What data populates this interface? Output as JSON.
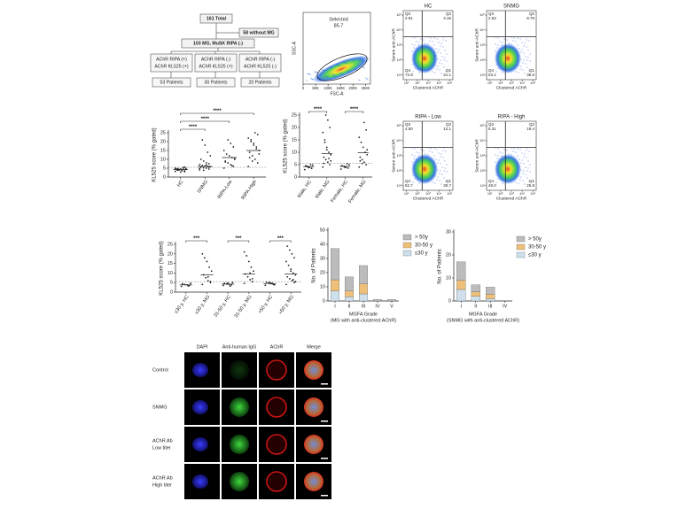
{
  "flowchart": {
    "nodes": [
      {
        "lines": [
          "161 Total"
        ]
      },
      {
        "lines": [
          "58 without MG"
        ]
      },
      {
        "lines": [
          "103 MG, MuSK RIPA (-)"
        ]
      },
      {
        "lines": [
          "AChR RIPA (+)",
          "AChR KL525 (+)"
        ]
      },
      {
        "lines": [
          "AChR RIPA (-)",
          "AChR KL525 (+)"
        ]
      },
      {
        "lines": [
          "AChR RIPA (-)",
          "AChR KL525 (-)"
        ]
      },
      {
        "lines": [
          "53 Patients"
        ]
      },
      {
        "lines": [
          "30 Patients"
        ]
      },
      {
        "lines": [
          "20 Patients"
        ]
      }
    ]
  },
  "gating": {
    "gate_name": "Selected",
    "gate_value": 85.7,
    "xlabel": "FSC-A",
    "ylabel": "SSC-A",
    "xlim": [
      0,
      270000
    ],
    "xticks": [
      0,
      {
        "value": 50000,
        "label": "50K"
      },
      {
        "value": 100000,
        "label": "100K"
      },
      {
        "value": 150000,
        "label": "150K"
      },
      {
        "value": 200000,
        "label": "200K"
      },
      {
        "value": 250000,
        "label": "250K"
      }
    ]
  },
  "facs": {
    "xlabel": "Clustered AChR",
    "ylabel": "Serum anti-AChR",
    "lim": [
      5,
      200000
    ],
    "log_scale": true,
    "ticks": [
      {
        "value": 10,
        "label": "10¹"
      },
      {
        "value": 100,
        "label": "10²"
      },
      {
        "value": 1000,
        "label": "10³"
      },
      {
        "value": 10000,
        "label": "10⁴"
      },
      {
        "value": 100000,
        "label": "10⁵"
      }
    ],
    "plots": [
      {
        "title": "HC",
        "quadrants": [
          {
            "name": "Q3",
            "value": 2.91
          },
          {
            "name": "Q2",
            "value": 3.16
          },
          {
            "name": "Q4",
            "value": 72.8
          },
          {
            "name": "Q1",
            "value": 21.1
          }
        ]
      },
      {
        "title": "SNMG",
        "quadrants": [
          {
            "name": "Q3",
            "value": 2.53
          },
          {
            "name": "Q2",
            "value": 8.76
          },
          {
            "name": "Q4",
            "value": 53.1
          },
          {
            "name": "Q1",
            "value": 35.6
          }
        ]
      },
      {
        "title": "RIPA - Low",
        "quadrants": [
          {
            "name": "Q3",
            "value": 4.5,
            "label": "4.50"
          },
          {
            "name": "Q2",
            "value": 12.1
          },
          {
            "name": "Q4",
            "value": 52.7
          },
          {
            "name": "Q1",
            "value": 30.7
          }
        ]
      },
      {
        "title": "RIPA - High",
        "quadrants": [
          {
            "name": "Q3",
            "value": 5.31
          },
          {
            "name": "Q2",
            "value": 19.4
          },
          {
            "name": "Q4",
            "value": 49.0,
            "label": "49.0"
          },
          {
            "name": "Q1",
            "value": 25.9
          }
        ]
      }
    ]
  },
  "chart_data": [
    {
      "type": "dot",
      "ylabel": "KL525 score (% gated)",
      "categories": [
        "HC",
        "SNMG",
        "RIPA-Low",
        "RIPA-High"
      ],
      "values": [
        [
          3.2,
          3.5,
          3.8,
          4.0,
          4.1,
          4.3,
          4.5,
          4.6,
          4.8,
          5.0,
          3.0,
          3.6,
          4.2,
          4.4,
          4.9,
          5.3,
          2.8,
          3.9,
          4.7,
          5.6
        ],
        [
          4.0,
          4.5,
          5.0,
          5.2,
          5.5,
          5.8,
          6.0,
          6.2,
          6.5,
          7.0,
          7.5,
          8.0,
          9.0,
          10.0,
          12.0,
          14.0,
          18.0,
          21.0,
          4.8,
          5.6,
          6.8,
          3.8
        ],
        [
          5.0,
          6.0,
          7.0,
          8.0,
          9.0,
          10.0,
          11.0,
          12.0,
          13.0,
          15.0,
          17.0,
          19.0,
          21.0,
          8.5,
          10.5,
          6.5
        ],
        [
          6.0,
          8.0,
          10.0,
          12.0,
          14.0,
          15.0,
          16.0,
          18.0,
          20.0,
          22.0,
          24.0,
          25.0,
          9.0,
          11.0,
          13.0,
          17.0,
          19.0,
          21.0
        ]
      ],
      "means": [
        4.3,
        6.0,
        11.0,
        15.0
      ],
      "threshold": 5.5,
      "ylim": [
        0,
        25
      ],
      "yticks": [
        0,
        5,
        10,
        15,
        20,
        25
      ],
      "comparisons": [
        {
          "groups": [
            "HC",
            "SNMG"
          ],
          "label": "****"
        },
        {
          "groups": [
            "HC",
            "RIPA-Low"
          ],
          "label": "****"
        },
        {
          "groups": [
            "HC",
            "RIPA-High"
          ],
          "label": "****"
        }
      ]
    },
    {
      "type": "dot",
      "ylabel": "KL525 score (% gated)",
      "categories": [
        "Male, HC",
        "Male, MG",
        "Female, HC",
        "Female, MG"
      ],
      "values": [
        [
          3.0,
          3.5,
          4.0,
          4.2,
          4.5,
          4.8,
          5.0,
          3.8,
          4.4
        ],
        [
          4.0,
          5.0,
          6.0,
          7.0,
          8.0,
          9.0,
          10.0,
          12.0,
          15.0,
          18.0,
          20.0,
          23.0,
          25.0,
          5.5,
          6.5,
          7.5,
          11.0,
          14.0
        ],
        [
          3.2,
          3.6,
          4.0,
          4.3,
          4.6,
          5.0,
          5.4,
          3.9
        ],
        [
          4.0,
          5.0,
          6.0,
          7.0,
          8.0,
          9.0,
          10.0,
          12.0,
          14.0,
          16.0,
          19.0,
          22.0,
          5.5,
          6.5,
          11.0
        ]
      ],
      "means": [
        4.2,
        9.5,
        4.3,
        9.8
      ],
      "threshold": 5.5,
      "ylim": [
        0,
        25
      ],
      "yticks": [
        0,
        5,
        10,
        15,
        20,
        25
      ],
      "comparisons": [
        {
          "groups": [
            "Male, HC",
            "Male, MG"
          ],
          "label": "****"
        },
        {
          "groups": [
            "Female, HC",
            "Female, MG"
          ],
          "label": "****"
        }
      ]
    },
    {
      "type": "dot",
      "ylabel": "KL525 score (% gated)",
      "categories": [
        "≤30 y, HC",
        "≤30 y, MG",
        "31-50 y, HC",
        "31-50 y, MG",
        ">50 y, HC",
        ">50 y, MG"
      ],
      "values": [
        [
          3.0,
          3.5,
          3.8,
          4.0,
          4.3,
          4.6,
          3.2
        ],
        [
          4.0,
          5.0,
          6.0,
          7.5,
          9.0,
          11.0,
          13.0,
          16.0,
          18.0,
          20.0,
          5.5,
          8.0
        ],
        [
          3.5,
          3.8,
          4.0,
          4.3,
          4.6,
          5.0,
          3.2,
          4.8
        ],
        [
          4.5,
          5.5,
          6.5,
          8.0,
          9.5,
          11.0,
          13.0,
          16.0,
          19.0,
          21.0,
          7.0,
          10.0
        ],
        [
          3.6,
          4.0,
          4.4,
          4.8,
          5.2,
          3.8,
          4.6,
          5.0
        ],
        [
          4.0,
          5.0,
          6.0,
          7.0,
          8.0,
          9.0,
          10.0,
          12.0,
          14.0,
          16.0,
          18.0,
          20.0,
          22.0,
          24.0,
          5.5,
          6.5,
          11.0
        ]
      ],
      "means": [
        3.8,
        9.0,
        4.2,
        9.5,
        4.5,
        9.5
      ],
      "threshold": 5.5,
      "ylim": [
        0,
        25
      ],
      "yticks": [
        0,
        5,
        10,
        15,
        20,
        25
      ],
      "comparisons": [
        {
          "groups": [
            "≤30 y, HC",
            "≤30 y, MG"
          ],
          "label": "***"
        },
        {
          "groups": [
            "31-50 y, HC",
            "31-50 y, MG"
          ],
          "label": "***"
        },
        {
          "groups": [
            ">50 y, HC",
            ">50 y, MG"
          ],
          "label": "***"
        }
      ]
    },
    {
      "type": "stacked_bar",
      "ylabel": "No. of Patients",
      "xlabel": [
        "MGFA Grade",
        "(MG with anti-clustered AChR)"
      ],
      "categories": [
        "I",
        "II",
        "III",
        "IV",
        "V"
      ],
      "series": [
        {
          "name": "≤30 y",
          "color": "#cfe0ec",
          "values": [
            7,
            3,
            5,
            0,
            0
          ]
        },
        {
          "name": "30-50 y",
          "color": "#efc07a",
          "values": [
            8,
            4,
            7,
            0,
            0
          ]
        },
        {
          "name": "> 50y",
          "color": "#bcbcbc",
          "values": [
            22,
            10,
            13,
            1,
            1
          ]
        }
      ],
      "ylim": [
        0,
        50
      ],
      "yticks": [
        0,
        10,
        20,
        30,
        40,
        50
      ]
    },
    {
      "type": "stacked_bar",
      "ylabel": "No. of Patients",
      "xlabel": [
        "MGFA Grade",
        "(SNMG with anti-clustered AChR)"
      ],
      "categories": [
        "I",
        "II",
        "III",
        "IV"
      ],
      "series": [
        {
          "name": "≤30 y",
          "color": "#cfe0ec",
          "values": [
            5,
            2,
            1,
            0
          ]
        },
        {
          "name": "30-50 y",
          "color": "#efc07a",
          "values": [
            4,
            2,
            2,
            0
          ]
        },
        {
          "name": "> 50y",
          "color": "#bcbcbc",
          "values": [
            8,
            3,
            3,
            0
          ]
        }
      ],
      "ylim": [
        0,
        30
      ],
      "yticks": [
        0,
        10,
        20,
        30
      ]
    }
  ],
  "microscopy": {
    "columns": [
      "DAPI",
      "Anti-human IgG",
      "AChR",
      "Merge"
    ],
    "rows": [
      {
        "lines": [
          "Control"
        ]
      },
      {
        "lines": [
          "SNMG"
        ]
      },
      {
        "lines": [
          "AChR Ab",
          "Low titer"
        ]
      },
      {
        "lines": [
          "AChR Ab",
          "High titer"
        ]
      }
    ]
  }
}
